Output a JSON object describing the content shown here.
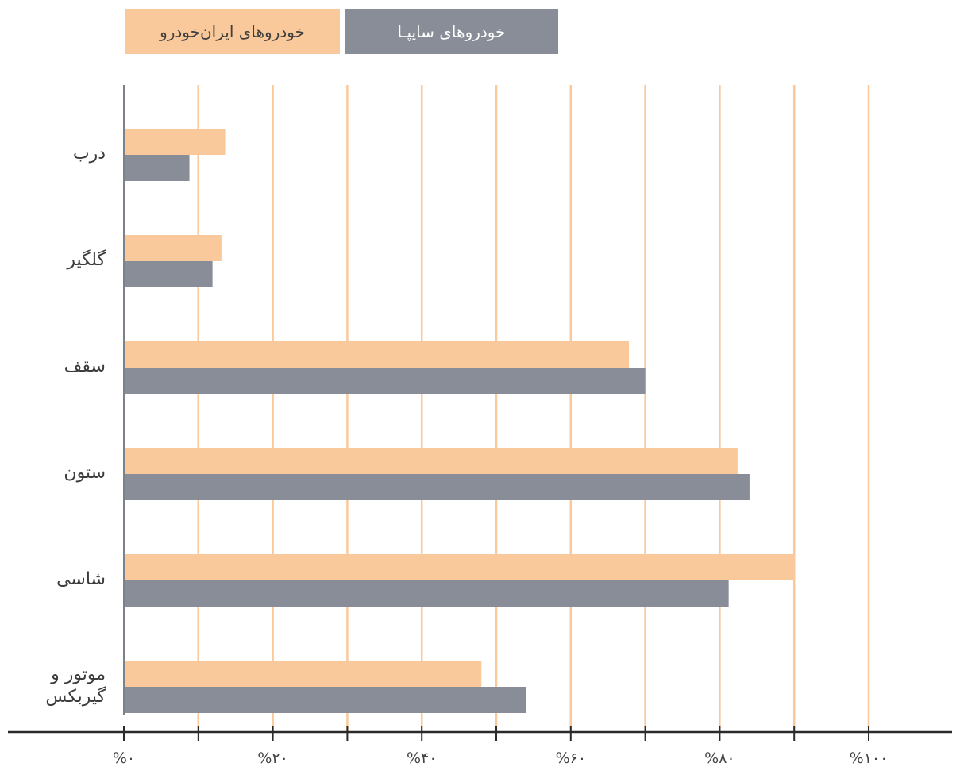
{
  "chart_data": {
    "type": "bar",
    "orientation": "horizontal",
    "categories": [
      "درب",
      "گلگیر",
      "سقف",
      "ستون",
      "شاسی",
      "موتور و گیربکس"
    ],
    "category_lines": [
      [
        "درب"
      ],
      [
        "گلگیر"
      ],
      [
        "سقف"
      ],
      [
        "ستون"
      ],
      [
        "شاسی"
      ],
      [
        "موتور و",
        "گیربکس"
      ]
    ],
    "series": [
      {
        "name": "خودروهای ایران‌خودرو",
        "color": "#fac99b",
        "values": [
          13.6,
          13.1,
          67.8,
          82.4,
          90.0,
          48.0
        ]
      },
      {
        "name": "خودروهای سایپـا",
        "color": "#888d97",
        "values": [
          8.8,
          11.9,
          70.0,
          84.0,
          81.2,
          54.0
        ]
      }
    ],
    "xlim": [
      0,
      100
    ],
    "x_ticks": [
      0,
      20,
      40,
      60,
      80,
      100
    ],
    "x_tick_labels": [
      "%۰",
      "%۲۰",
      "%۴۰",
      "%۶۰",
      "%۸۰",
      "%۱۰۰"
    ],
    "gridlines": [
      10,
      20,
      30,
      40,
      50,
      60,
      70,
      80,
      90,
      100
    ],
    "grid_color": "#fac99b",
    "legend_position": "top-left"
  }
}
